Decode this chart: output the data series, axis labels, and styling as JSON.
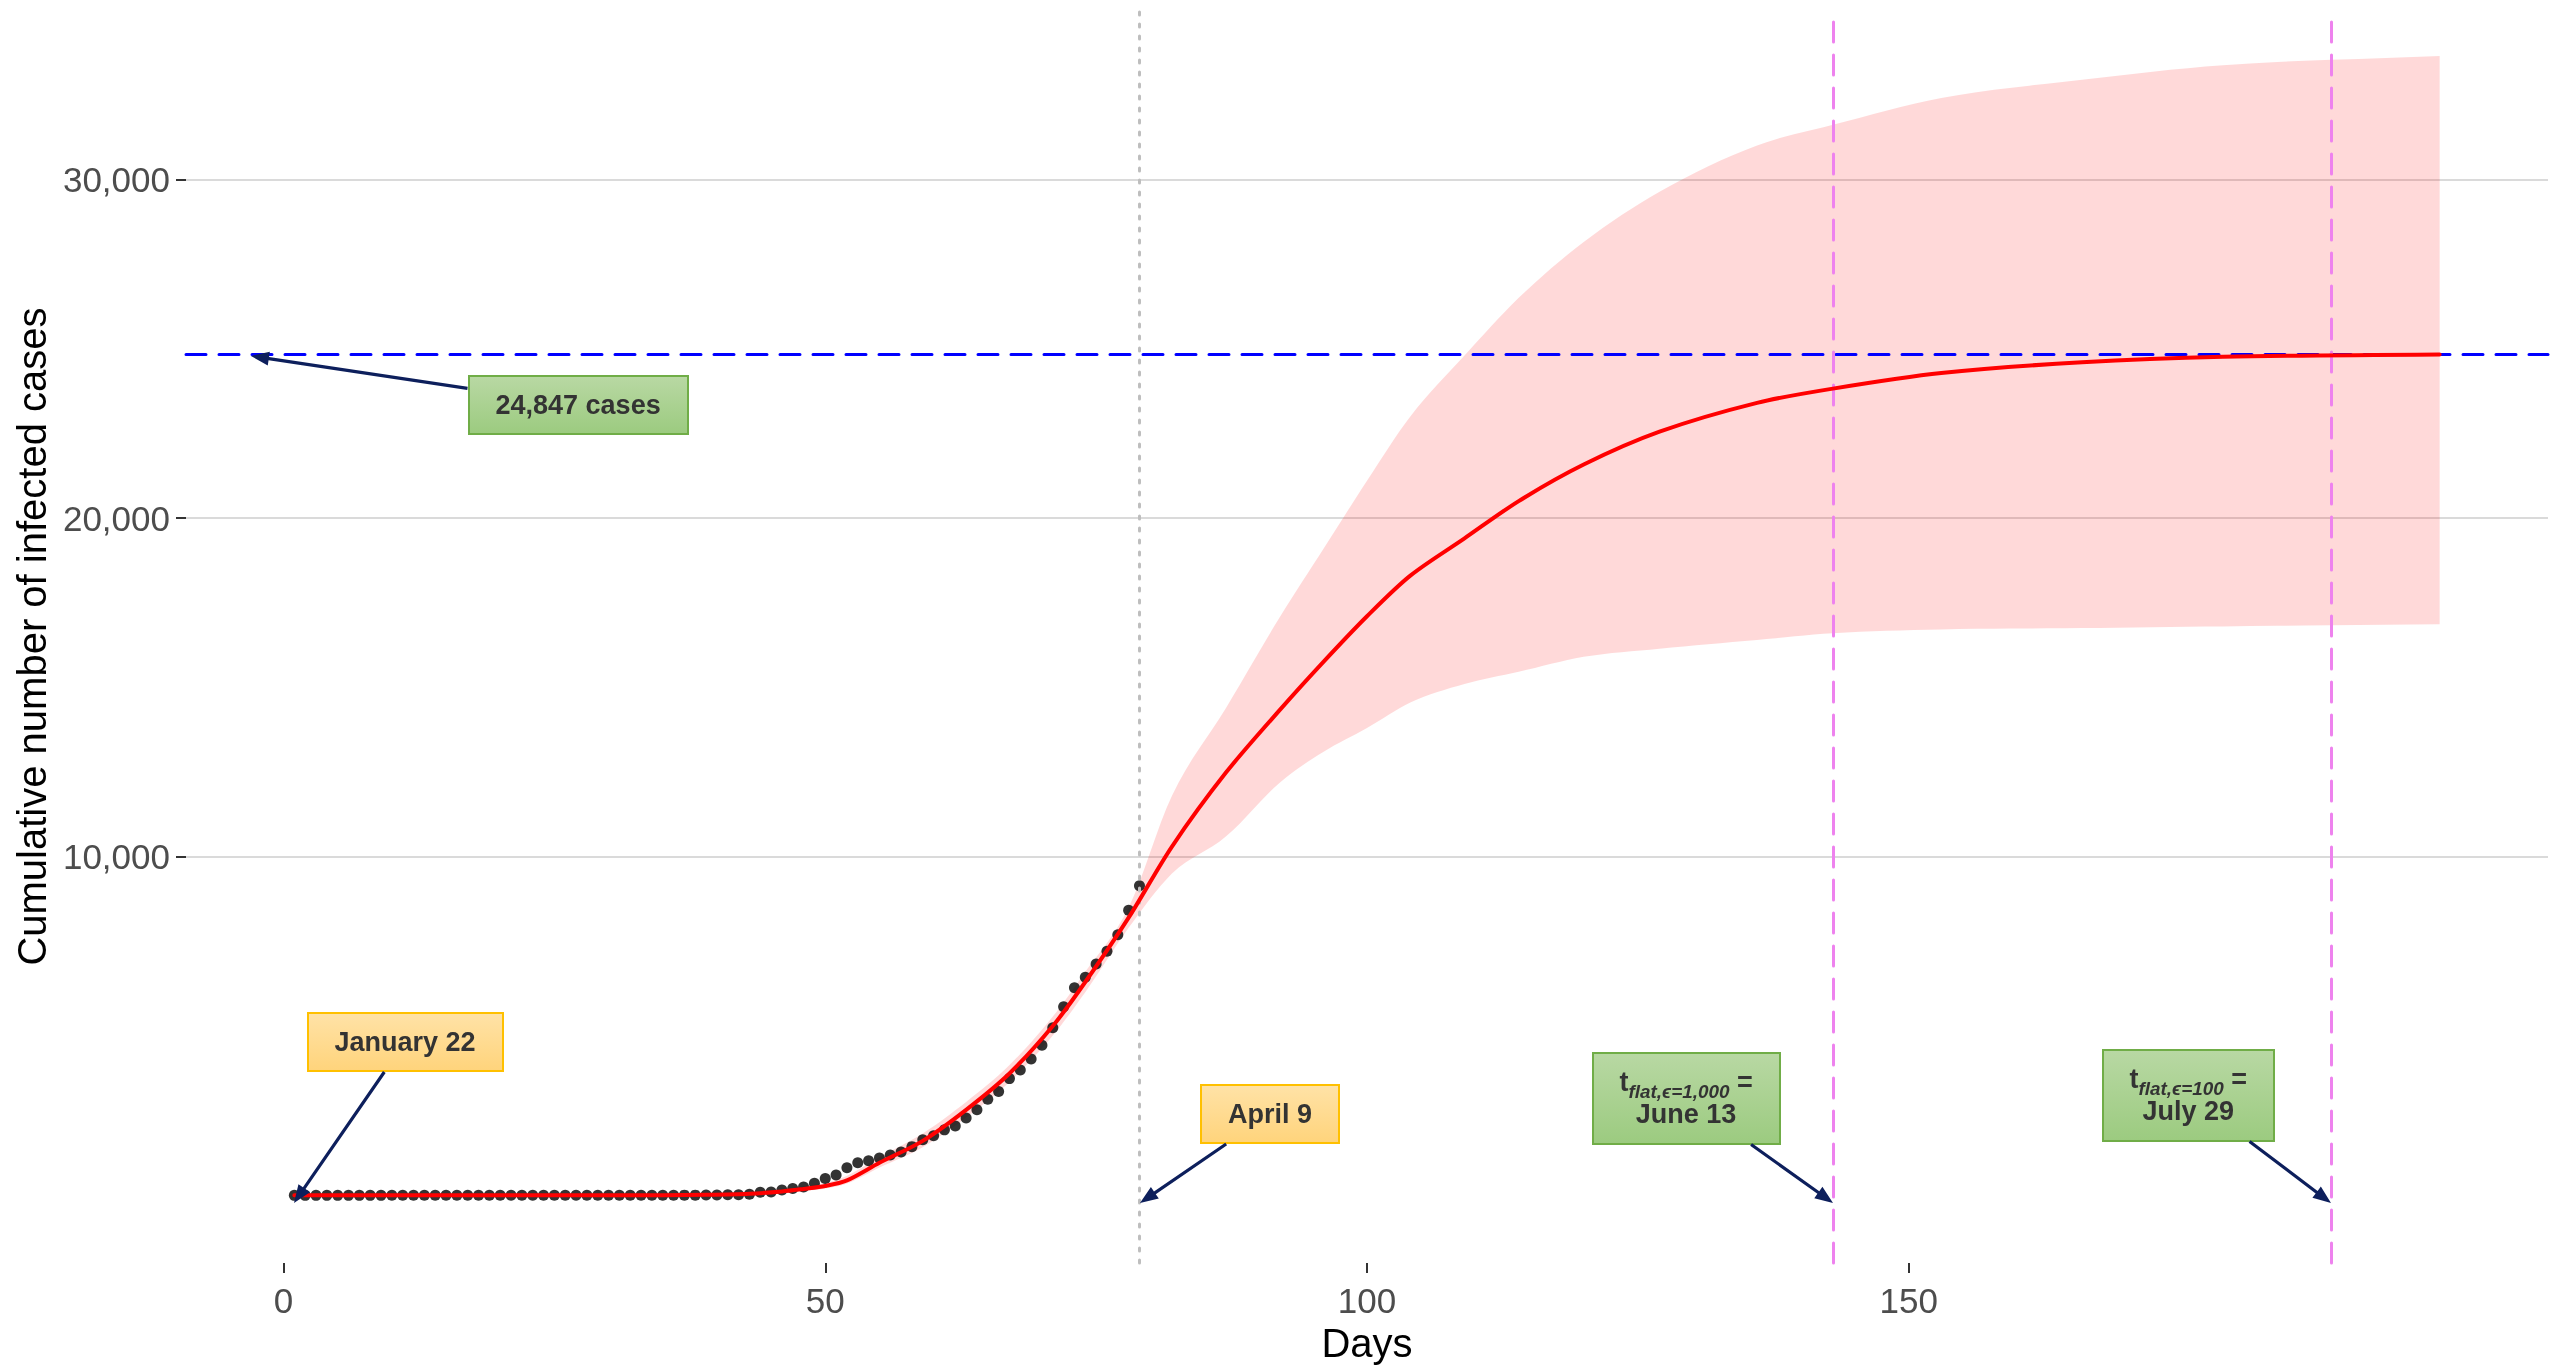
{
  "chart_data": {
    "type": "scatter",
    "xlabel": "Days",
    "ylabel": "Cumulative number of infected cases",
    "xlim": [
      -9,
      209
    ],
    "xticks": [
      0,
      50,
      100,
      150
    ],
    "ylim": [
      -2000,
      35000
    ],
    "yticks": [
      {
        "value": 10000,
        "label": "10,000"
      },
      {
        "value": 20000,
        "label": "20,000"
      },
      {
        "value": 30000,
        "label": "30,000"
      }
    ],
    "grid": "y",
    "series": [
      {
        "color": "#000000",
        "marker": "circle",
        "x": [
          1,
          2,
          3,
          4,
          5,
          6,
          7,
          8,
          9,
          10,
          11,
          12,
          13,
          14,
          15,
          16,
          17,
          18,
          19,
          20,
          21,
          22,
          23,
          24,
          25,
          26,
          27,
          28,
          29,
          30,
          31,
          32,
          33,
          34,
          35,
          36,
          37,
          38,
          39,
          40,
          41,
          42,
          43,
          44,
          45,
          46,
          47,
          48,
          49,
          50,
          51,
          52,
          53,
          54,
          55,
          56,
          57,
          58,
          59,
          60,
          61,
          62,
          63,
          64,
          65,
          66,
          67,
          68,
          69,
          70,
          71,
          72,
          73,
          74,
          75,
          76,
          77,
          78,
          79
        ],
        "values": [
          0,
          0,
          0,
          0,
          0,
          0,
          0,
          0,
          0,
          1,
          1,
          1,
          1,
          1,
          1,
          1,
          1,
          1,
          1,
          1,
          1,
          1,
          1,
          1,
          1,
          1,
          1,
          1,
          1,
          1,
          1,
          1,
          1,
          1,
          1,
          2,
          7,
          7,
          12,
          14,
          15,
          21,
          35,
          94,
          101,
          161,
          203,
          248,
          355,
          500,
          599,
          814,
          961,
          1022,
          1103,
          1190,
          1279,
          1439,
          1639,
          1763,
          1934,
          2046,
          2286,
          2526,
          2840,
          3069,
          3447,
          3700,
          4028,
          4435,
          4947,
          5568,
          6131,
          6443,
          6830,
          7206,
          7693,
          8419,
          9141
        ]
      },
      {
        "type": "line",
        "color": "#ff0000",
        "marker": "none",
        "x": [
          1,
          10,
          20,
          30,
          35,
          39,
          43,
          46,
          48,
          50,
          52,
          55,
          59,
          63,
          67,
          71,
          74,
          78,
          82,
          87,
          92,
          96,
          100,
          104,
          109,
          114,
          120,
          127,
          136,
          143,
          153,
          166,
          179,
          199
        ],
        "values": [
          0,
          0,
          1,
          2,
          4,
          15,
          47,
          115,
          190,
          276,
          440,
          960,
          1610,
          2526,
          3600,
          5000,
          6300,
          8200,
          10300,
          12490,
          14350,
          15760,
          17100,
          18300,
          19400,
          20500,
          21580,
          22550,
          23400,
          23820,
          24280,
          24600,
          24760,
          24830
        ],
        "lower": [
          0,
          0,
          0,
          1,
          1,
          6,
          25,
          70,
          125,
          200,
          350,
          820,
          1420,
          2300,
          3350,
          4720,
          6000,
          7900,
          9500,
          10600,
          12200,
          13100,
          13800,
          14550,
          15100,
          15460,
          15900,
          16140,
          16400,
          16600,
          16710,
          16750,
          16800,
          16860
        ],
        "upper": [
          0,
          1,
          2,
          5,
          12,
          32,
          80,
          175,
          270,
          370,
          580,
          1130,
          1830,
          2760,
          3850,
          5280,
          6600,
          8500,
          11800,
          14400,
          17100,
          19100,
          21100,
          23000,
          24800,
          26500,
          28150,
          29630,
          31000,
          31610,
          32400,
          32940,
          33370,
          33640
        ]
      }
    ],
    "ref_lines": [
      {
        "axis": "y",
        "value": 24847,
        "color": "#0000ff",
        "line_style": "dashed"
      },
      {
        "axis": "x",
        "value": 79,
        "color": "#bebebe",
        "line_style": "dotted"
      },
      {
        "axis": "x",
        "value": 143,
        "color": "#ee82ee",
        "line_style": "dashed"
      },
      {
        "axis": "x",
        "value": 189,
        "color": "#ee82ee",
        "line_style": "dashed"
      }
    ],
    "annotations": [
      "24,847 cases",
      "January 22",
      "April 9",
      "t$_{flat,ϵ=1,000}$ =\nJune 13",
      "t$_{flat,ϵ=100}$ =\nJuly 29"
    ]
  }
}
